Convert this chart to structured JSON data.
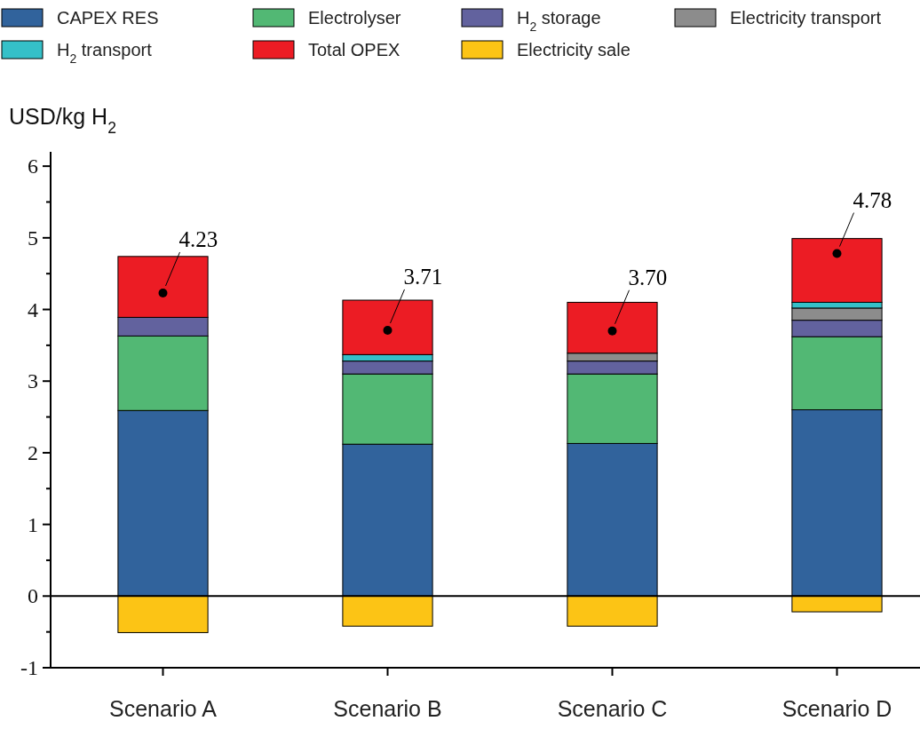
{
  "chart_data": {
    "type": "bar",
    "stacked": true,
    "ylabel": "USD/kg H$_{2}$",
    "categories": [
      "Scenario A",
      "Scenario B",
      "Scenario C",
      "Scenario D"
    ],
    "series": [
      {
        "name": "CAPEX RES",
        "color": "#31639c",
        "values": [
          2.59,
          2.12,
          2.13,
          2.6
        ]
      },
      {
        "name": "Electrolyser",
        "color": "#52b874",
        "values": [
          1.04,
          0.98,
          0.97,
          1.02
        ]
      },
      {
        "name": "H$_{2}$ storage",
        "color": "#62629e",
        "values": [
          0.26,
          0.18,
          0.18,
          0.23
        ]
      },
      {
        "name": "Electricity transport",
        "color": "#8c8c8c",
        "values": [
          0,
          0,
          0.11,
          0.17
        ]
      },
      {
        "name": "H$_{2}$ transport",
        "color": "#35c0c8",
        "values": [
          0,
          0.09,
          0,
          0.08
        ]
      },
      {
        "name": "Total OPEX",
        "color": "#ec1c24",
        "values": [
          0.85,
          0.76,
          0.71,
          0.89
        ]
      },
      {
        "name": "Electricity sale",
        "color": "#fcc415",
        "values": [
          -0.51,
          -0.42,
          -0.42,
          -0.22
        ]
      },
      {
        "type": "scatter",
        "color": "#000000",
        "marker": "circle",
        "x": [
          "Scenario A",
          "Scenario B",
          "Scenario C",
          "Scenario D"
        ],
        "values": [
          4.23,
          3.71,
          3.7,
          4.78
        ],
        "value_labels": [
          "4.23",
          "3.71",
          "3.70",
          "4.78"
        ]
      }
    ],
    "ylim": [
      -1,
      6.2
    ],
    "yticks": [
      -1,
      {
        "value": -0.5,
        "label": null
      },
      0,
      {
        "value": 0.5,
        "label": null
      },
      1,
      {
        "value": 1.5,
        "label": null
      },
      2,
      {
        "value": 2.5,
        "label": null
      },
      3,
      {
        "value": 3.5,
        "label": null
      },
      4,
      {
        "value": 4.5,
        "label": null
      },
      5,
      {
        "value": 5.5,
        "label": null
      },
      6
    ],
    "ref_lines": [
      {
        "axis": "y",
        "value": 0,
        "color": "#000000"
      }
    ],
    "legend": "top",
    "grid": false
  }
}
